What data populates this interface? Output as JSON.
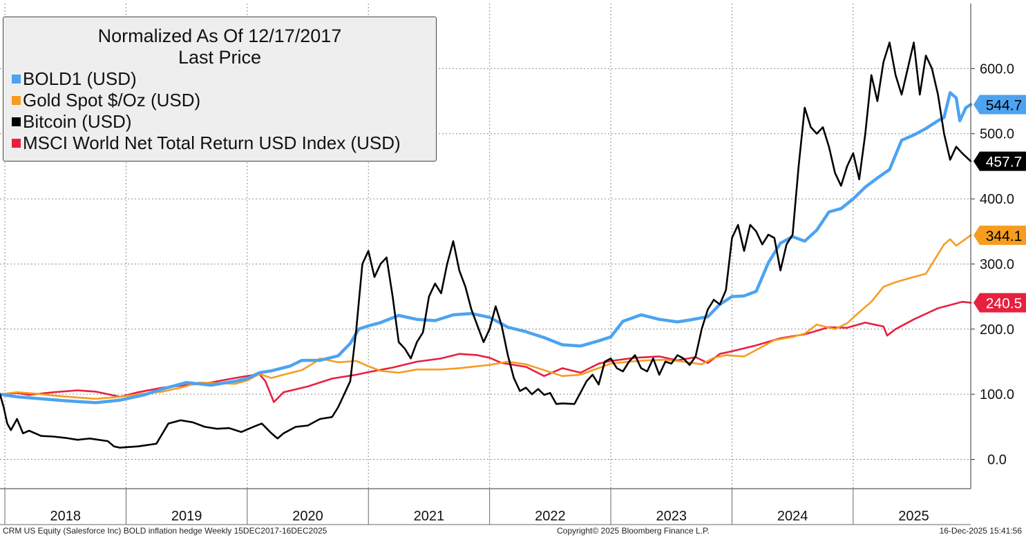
{
  "legend": {
    "title": "Normalized As Of 12/17/2017",
    "subtitle": "Last Price",
    "items": [
      {
        "label": "BOLD1 (USD)",
        "color": "#4da3f0"
      },
      {
        "label": "Gold Spot $/Oz (USD)",
        "color": "#f59d1f"
      },
      {
        "label": "Bitcoin (USD)",
        "color": "#000000"
      },
      {
        "label": "MSCI World Net Total Return USD Index (USD)",
        "color": "#e8203f"
      }
    ]
  },
  "footer": {
    "left": "CRM US Equity (Salesforce Inc) BOLD inflation hedge Weekly 15DEC2017-16DEC2025",
    "center": "Copyright© 2025 Bloomberg Finance L.P.",
    "right": "16-Dec-2025 15:41:56"
  },
  "chart_data": {
    "type": "line",
    "title": "Normalized As Of 12/17/2017",
    "subtitle": "Last Price",
    "xlim": [
      2017.96,
      2025.97
    ],
    "ylim": [
      -45,
      700
    ],
    "y_ticks": [
      0,
      100,
      200,
      300,
      400,
      500,
      600
    ],
    "y_tick_labels": [
      "0.0",
      "100.0",
      "200.0",
      "300.0",
      "400.0",
      "500.0",
      "600.0"
    ],
    "x_tick_labels": [
      "2018",
      "2019",
      "2020",
      "2021",
      "2022",
      "2023",
      "2024",
      "2025"
    ],
    "last_value_labels": [
      {
        "series": "BOLD1 (USD)",
        "text": "544.7",
        "value": 544.7,
        "bg": "#4da3f0",
        "fg": "#000000"
      },
      {
        "series": "Bitcoin (USD)",
        "text": "457.7",
        "value": 457.7,
        "bg": "#000000",
        "fg": "#ffffff"
      },
      {
        "series": "Gold Spot $/Oz (USD)",
        "text": "344.1",
        "value": 344.1,
        "bg": "#f59d1f",
        "fg": "#000000"
      },
      {
        "series": "MSCI World Net Total Return USD Index (USD)",
        "text": "240.5",
        "value": 240.5,
        "bg": "#e8203f",
        "fg": "#ffffff"
      }
    ],
    "series": [
      {
        "name": "MSCI World Net Total Return USD Index (USD)",
        "color": "#e8203f",
        "width": 2.6,
        "x": [
          2017.96,
          2018.1,
          2018.2,
          2018.4,
          2018.6,
          2018.75,
          2018.95,
          2019.1,
          2019.3,
          2019.5,
          2019.7,
          2019.9,
          2020.1,
          2020.15,
          2020.22,
          2020.3,
          2020.5,
          2020.7,
          2020.9,
          2021.0,
          2021.2,
          2021.4,
          2021.6,
          2021.75,
          2021.9,
          2022.0,
          2022.1,
          2022.3,
          2022.45,
          2022.6,
          2022.75,
          2022.9,
          2023.0,
          2023.2,
          2023.4,
          2023.55,
          2023.7,
          2023.8,
          2023.9,
          2024.0,
          2024.2,
          2024.4,
          2024.6,
          2024.8,
          2024.95,
          2025.1,
          2025.25,
          2025.28,
          2025.35,
          2025.5,
          2025.7,
          2025.9,
          2025.97
        ],
        "y": [
          100,
          102,
          99,
          103,
          106,
          104,
          96,
          103,
          110,
          114,
          118,
          125,
          131,
          120,
          88,
          103,
          112,
          124,
          130,
          134,
          141,
          150,
          155,
          162,
          160,
          156,
          148,
          142,
          128,
          140,
          133,
          147,
          151,
          156,
          158,
          152,
          157,
          148,
          162,
          166,
          175,
          186,
          192,
          203,
          202,
          210,
          204,
          190,
          200,
          215,
          232,
          242,
          240.5
        ]
      },
      {
        "name": "Gold Spot $/Oz (USD)",
        "color": "#f59d1f",
        "width": 2.6,
        "x": [
          2017.96,
          2018.1,
          2018.25,
          2018.4,
          2018.6,
          2018.75,
          2018.95,
          2019.1,
          2019.3,
          2019.45,
          2019.6,
          2019.75,
          2019.9,
          2020.0,
          2020.1,
          2020.2,
          2020.3,
          2020.45,
          2020.55,
          2020.6,
          2020.75,
          2020.9,
          2021.0,
          2021.1,
          2021.25,
          2021.4,
          2021.6,
          2021.75,
          2021.9,
          2022.0,
          2022.15,
          2022.3,
          2022.45,
          2022.6,
          2022.75,
          2022.9,
          2023.0,
          2023.15,
          2023.3,
          2023.45,
          2023.6,
          2023.75,
          2023.85,
          2023.95,
          2024.1,
          2024.2,
          2024.35,
          2024.5,
          2024.6,
          2024.7,
          2024.85,
          2024.95,
          2025.05,
          2025.15,
          2025.25,
          2025.35,
          2025.5,
          2025.6,
          2025.65,
          2025.75,
          2025.8,
          2025.85,
          2025.97
        ],
        "y": [
          100,
          103,
          101,
          98,
          95,
          93,
          96,
          100,
          104,
          110,
          118,
          117,
          116,
          121,
          131,
          125,
          130,
          137,
          148,
          155,
          149,
          151,
          143,
          136,
          133,
          138,
          138,
          140,
          143,
          145,
          150,
          146,
          137,
          128,
          130,
          140,
          147,
          150,
          152,
          153,
          150,
          146,
          156,
          160,
          158,
          168,
          183,
          188,
          193,
          207,
          200,
          209,
          226,
          242,
          265,
          272,
          280,
          285,
          300,
          330,
          338,
          328,
          344.1
        ]
      },
      {
        "name": "BOLD1 (USD)",
        "color": "#4da3f0",
        "width": 4.5,
        "x": [
          2017.96,
          2018.1,
          2018.3,
          2018.5,
          2018.75,
          2018.95,
          2019.15,
          2019.3,
          2019.5,
          2019.7,
          2019.9,
          2020.0,
          2020.1,
          2020.2,
          2020.35,
          2020.45,
          2020.6,
          2020.75,
          2020.85,
          2020.92,
          2021.0,
          2021.1,
          2021.25,
          2021.4,
          2021.55,
          2021.7,
          2021.85,
          2022.0,
          2022.15,
          2022.3,
          2022.45,
          2022.6,
          2022.75,
          2022.9,
          2023.0,
          2023.1,
          2023.25,
          2023.4,
          2023.55,
          2023.65,
          2023.8,
          2023.9,
          2024.0,
          2024.1,
          2024.2,
          2024.3,
          2024.4,
          2024.5,
          2024.6,
          2024.7,
          2024.8,
          2024.9,
          2025.0,
          2025.1,
          2025.2,
          2025.3,
          2025.4,
          2025.5,
          2025.6,
          2025.7,
          2025.75,
          2025.8,
          2025.85,
          2025.88,
          2025.93,
          2025.97
        ],
        "y": [
          100,
          96,
          93,
          90,
          87,
          91,
          99,
          108,
          118,
          114,
          120,
          124,
          133,
          136,
          143,
          152,
          152,
          159,
          178,
          200,
          205,
          210,
          221,
          215,
          213,
          222,
          224,
          218,
          203,
          196,
          187,
          176,
          174,
          182,
          188,
          212,
          222,
          215,
          211,
          214,
          219,
          238,
          250,
          251,
          258,
          302,
          332,
          342,
          335,
          352,
          380,
          385,
          400,
          418,
          432,
          445,
          490,
          498,
          508,
          520,
          525,
          563,
          555,
          520,
          540,
          544.7
        ]
      },
      {
        "name": "Bitcoin (USD)",
        "color": "#000000",
        "width": 2.6,
        "x": [
          2017.96,
          2017.99,
          2018.02,
          2018.05,
          2018.1,
          2018.15,
          2018.2,
          2018.3,
          2018.4,
          2018.5,
          2018.6,
          2018.7,
          2018.85,
          2018.9,
          2018.95,
          2019.1,
          2019.25,
          2019.35,
          2019.45,
          2019.55,
          2019.65,
          2019.75,
          2019.85,
          2019.95,
          2020.05,
          2020.12,
          2020.2,
          2020.25,
          2020.3,
          2020.4,
          2020.5,
          2020.6,
          2020.7,
          2020.75,
          2020.8,
          2020.85,
          2020.9,
          2020.95,
          2021.0,
          2021.05,
          2021.1,
          2021.15,
          2021.2,
          2021.25,
          2021.3,
          2021.35,
          2021.4,
          2021.45,
          2021.5,
          2021.55,
          2021.6,
          2021.65,
          2021.7,
          2021.75,
          2021.8,
          2021.85,
          2021.9,
          2021.95,
          2022.0,
          2022.05,
          2022.1,
          2022.15,
          2022.2,
          2022.25,
          2022.3,
          2022.35,
          2022.4,
          2022.45,
          2022.5,
          2022.55,
          2022.6,
          2022.7,
          2022.8,
          2022.85,
          2022.9,
          2022.95,
          2023.0,
          2023.05,
          2023.1,
          2023.15,
          2023.2,
          2023.25,
          2023.3,
          2023.35,
          2023.4,
          2023.45,
          2023.5,
          2023.55,
          2023.6,
          2023.65,
          2023.7,
          2023.75,
          2023.8,
          2023.85,
          2023.9,
          2023.95,
          2024.0,
          2024.05,
          2024.1,
          2024.15,
          2024.2,
          2024.25,
          2024.3,
          2024.35,
          2024.4,
          2024.45,
          2024.5,
          2024.55,
          2024.6,
          2024.65,
          2024.7,
          2024.75,
          2024.8,
          2024.85,
          2024.9,
          2024.95,
          2025.0,
          2025.05,
          2025.1,
          2025.15,
          2025.2,
          2025.25,
          2025.3,
          2025.35,
          2025.4,
          2025.45,
          2025.5,
          2025.55,
          2025.6,
          2025.65,
          2025.7,
          2025.75,
          2025.8,
          2025.85,
          2025.9,
          2025.97
        ],
        "y": [
          100,
          80,
          55,
          45,
          62,
          40,
          44,
          36,
          35,
          33,
          30,
          32,
          28,
          20,
          18,
          20,
          24,
          55,
          60,
          57,
          50,
          47,
          48,
          42,
          50,
          55,
          40,
          32,
          40,
          50,
          52,
          62,
          65,
          80,
          100,
          120,
          200,
          300,
          320,
          280,
          300,
          310,
          250,
          180,
          170,
          155,
          180,
          195,
          250,
          270,
          255,
          300,
          335,
          290,
          265,
          230,
          205,
          180,
          200,
          235,
          205,
          160,
          125,
          105,
          110,
          100,
          108,
          99,
          102,
          85,
          86,
          85,
          120,
          130,
          115,
          150,
          155,
          140,
          135,
          150,
          160,
          140,
          135,
          155,
          130,
          150,
          147,
          160,
          155,
          145,
          158,
          200,
          230,
          245,
          238,
          260,
          340,
          360,
          320,
          360,
          350,
          330,
          345,
          340,
          290,
          330,
          345,
          450,
          540,
          510,
          500,
          510,
          480,
          440,
          420,
          450,
          470,
          430,
          500,
          590,
          550,
          610,
          640,
          590,
          560,
          600,
          640,
          560,
          620,
          600,
          560,
          500,
          460,
          480,
          470,
          457.7
        ]
      }
    ]
  }
}
